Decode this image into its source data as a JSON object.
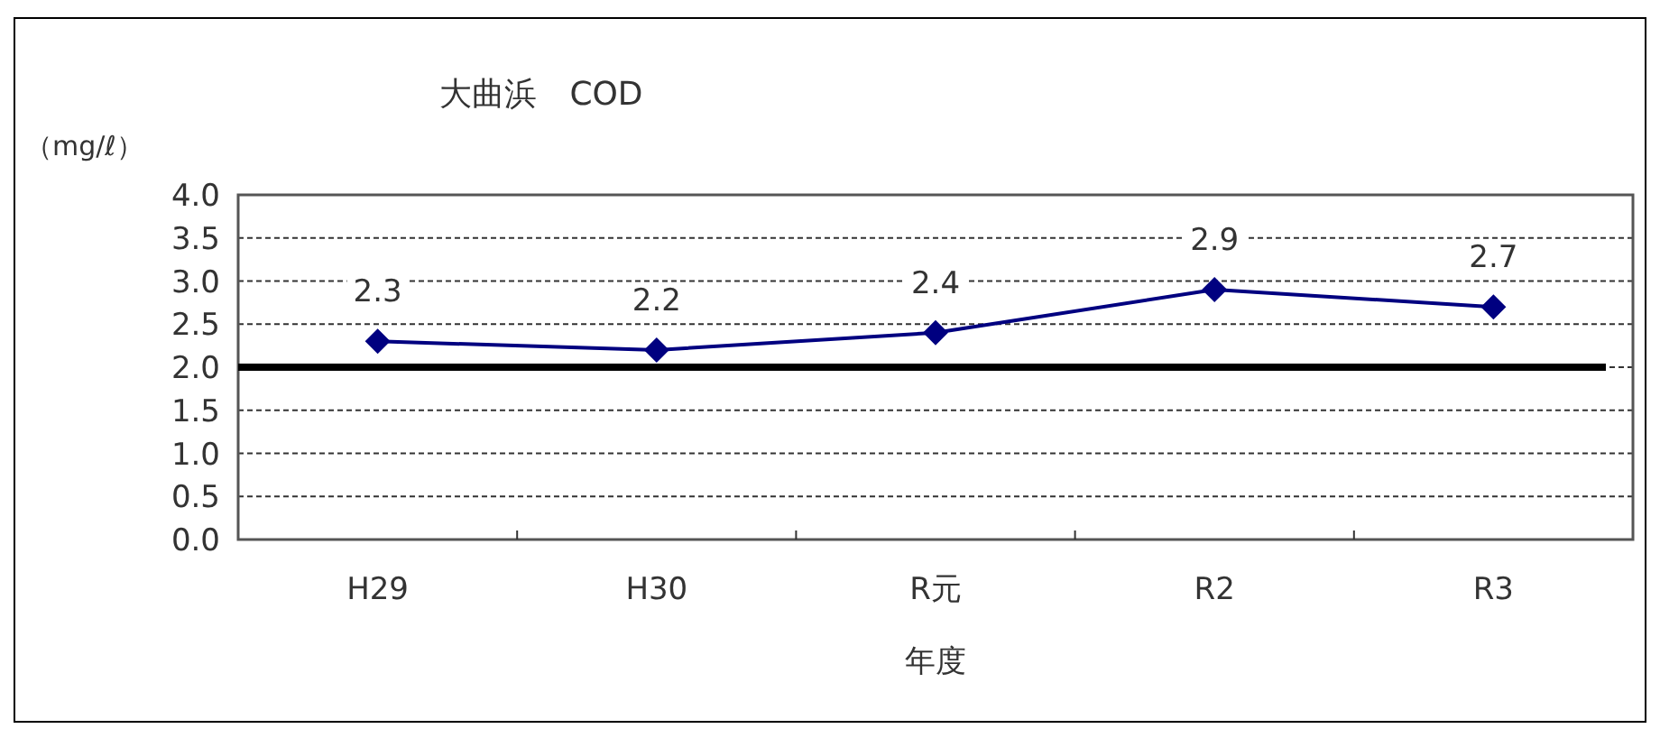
{
  "chart_data": {
    "type": "line",
    "title": "大曲浜　COD",
    "ylabel": "（mg/ℓ）",
    "xlabel": "年度",
    "categories": [
      "H29",
      "H30",
      "R元",
      "R2",
      "R3"
    ],
    "series": [
      {
        "color": "#000080",
        "values": [
          2.3,
          2.2,
          2.4,
          2.9,
          2.7
        ]
      }
    ],
    "ylim": [
      0,
      4
    ],
    "yticks": [
      {
        "value": 0,
        "label": "0.0"
      },
      0.5,
      {
        "value": 1,
        "label": "1.0"
      },
      1.5,
      {
        "value": 2,
        "label": "2.0"
      },
      2.5,
      {
        "value": 3,
        "label": "3.0"
      },
      3.5,
      {
        "value": 4,
        "label": "4.0"
      }
    ],
    "ref_lines": [
      {
        "axis": "y",
        "value": 2,
        "color": "#000000"
      }
    ],
    "grid": "y",
    "marker": "diamond",
    "line_style": "solid",
    "data_labels": true
  }
}
